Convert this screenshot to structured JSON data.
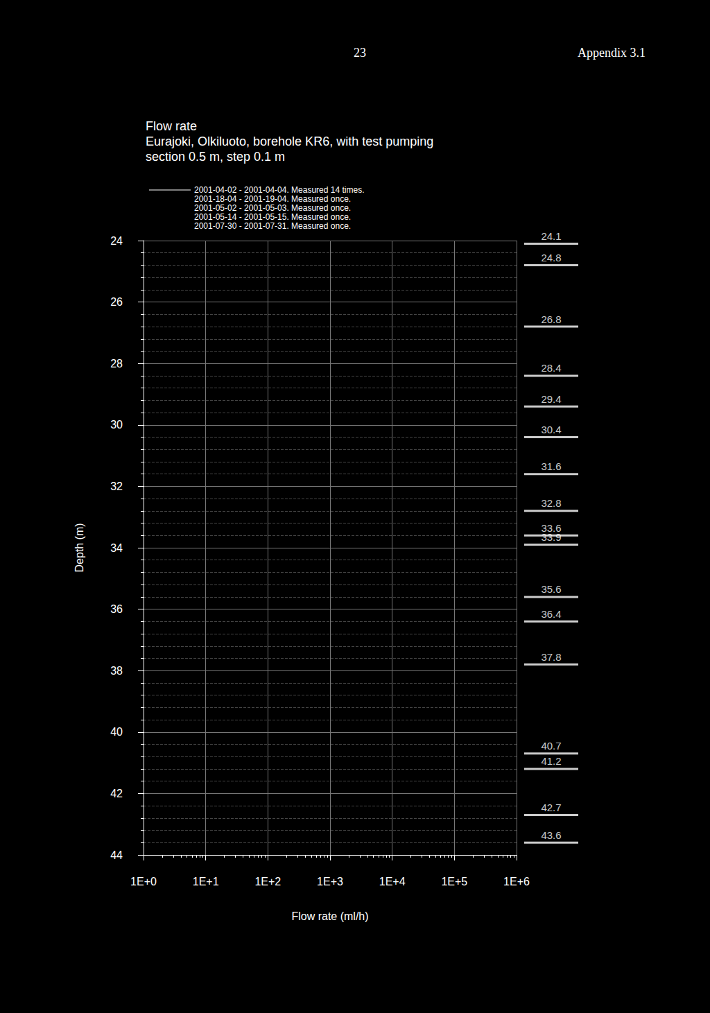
{
  "page_header": {
    "page": "23",
    "appendix": "Appendix 3.1"
  },
  "chart_data": {
    "type": "line",
    "title": "Flow rate\nEurajoki, Olkiluoto, borehole KR6, with test pumping\nsection 0.5 m, step 0.1 m",
    "x_label": "Flow rate (ml/h)",
    "y_label": "Depth (m)",
    "log": "x",
    "grid": true,
    "legend": "top-left",
    "xlim": [
      1,
      1000000
    ],
    "xticks": [
      {
        "value": 1,
        "label": "1E+0"
      },
      {
        "value": 10,
        "label": "1E+1"
      },
      {
        "value": 100,
        "label": "1E+2"
      },
      {
        "value": 1000,
        "label": "1E+3"
      },
      {
        "value": 10000,
        "label": "1E+4"
      },
      {
        "value": 100000,
        "label": "1E+5"
      },
      {
        "value": 1000000,
        "label": "1E+6"
      }
    ],
    "ylim": [
      24,
      44
    ],
    "yticks": [
      24,
      26,
      28,
      30,
      32,
      34,
      36,
      38,
      40,
      42,
      44
    ],
    "series": [
      {
        "name": "2001-04-02 - 2001-04-04. Measured 14 times.",
        "color": "#ffffff",
        "x": [],
        "values": []
      },
      {
        "name": "2001-18-04 - 2001-19-04. Measured once.",
        "color": "#000000",
        "x": [],
        "values": []
      },
      {
        "name": "2001-05-02 - 2001-05-03. Measured once.",
        "color": "#000000",
        "x": [],
        "values": []
      },
      {
        "name": "2001-05-14 - 2001-05-15. Measured once.",
        "color": "#000000",
        "x": [],
        "values": []
      },
      {
        "name": "2001-07-30 - 2001-07-31. Measured once.",
        "color": "#000000",
        "x": [],
        "values": []
      }
    ],
    "marked_depths": [
      24.1,
      24.8,
      26.8,
      28.4,
      29.4,
      30.4,
      31.6,
      32.8,
      33.6,
      33.9,
      35.6,
      36.4,
      37.8,
      40.7,
      41.2,
      42.7,
      43.6
    ]
  }
}
